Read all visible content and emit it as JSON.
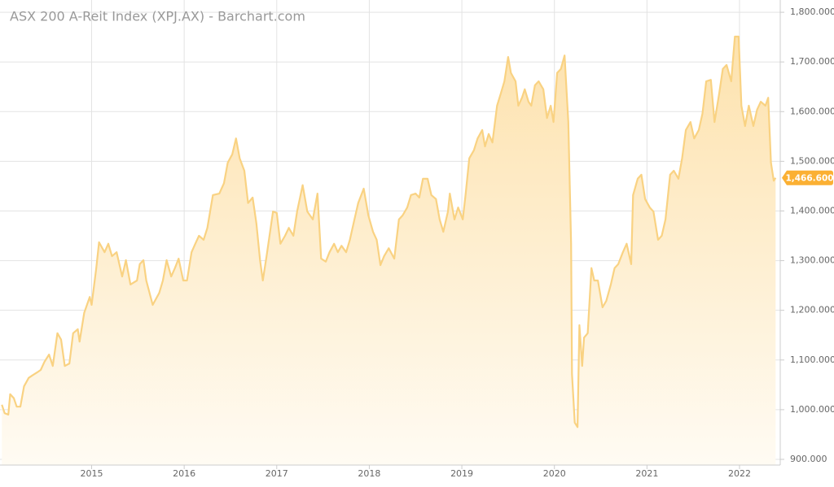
{
  "chart_data": {
    "type": "area",
    "title": "ASX 200 A-Reit Index (XPJ.AX) - Barchart.com",
    "x": [
      2014.03,
      2014.06,
      2014.1,
      2014.12,
      2014.16,
      2014.19,
      2014.23,
      2014.27,
      2014.32,
      2014.36,
      2014.41,
      2014.45,
      2014.49,
      2014.54,
      2014.58,
      2014.63,
      2014.67,
      2014.71,
      2014.76,
      2014.8,
      2014.85,
      2014.87,
      2014.92,
      2014.98,
      2015.0,
      2015.05,
      2015.08,
      2015.14,
      2015.18,
      2015.22,
      2015.27,
      2015.33,
      2015.37,
      2015.42,
      2015.49,
      2015.52,
      2015.56,
      2015.59,
      2015.66,
      2015.73,
      2015.77,
      2015.81,
      2015.86,
      2015.9,
      2015.94,
      2015.99,
      2016.03,
      2016.08,
      2016.12,
      2016.16,
      2016.21,
      2016.25,
      2016.31,
      2016.38,
      2016.43,
      2016.47,
      2016.52,
      2016.56,
      2016.6,
      2016.65,
      2016.69,
      2016.74,
      2016.78,
      2016.82,
      2016.85,
      2016.89,
      2016.96,
      2017.0,
      2017.04,
      2017.09,
      2017.13,
      2017.18,
      2017.22,
      2017.28,
      2017.33,
      2017.39,
      2017.44,
      2017.48,
      2017.53,
      2017.57,
      2017.62,
      2017.66,
      2017.7,
      2017.75,
      2017.79,
      2017.84,
      2017.88,
      2017.94,
      2017.99,
      2018.04,
      2018.08,
      2018.12,
      2018.16,
      2018.21,
      2018.27,
      2018.32,
      2018.36,
      2018.41,
      2018.45,
      2018.5,
      2018.54,
      2018.58,
      2018.63,
      2018.67,
      2018.72,
      2018.76,
      2018.8,
      2018.85,
      2018.87,
      2018.92,
      2018.96,
      2019.01,
      2019.04,
      2019.08,
      2019.13,
      2019.17,
      2019.22,
      2019.25,
      2019.29,
      2019.33,
      2019.38,
      2019.42,
      2019.46,
      2019.5,
      2019.53,
      2019.58,
      2019.61,
      2019.65,
      2019.68,
      2019.72,
      2019.75,
      2019.79,
      2019.83,
      2019.88,
      2019.92,
      2019.96,
      2019.99,
      2020.03,
      2020.07,
      2020.11,
      2020.15,
      2020.18,
      2020.19,
      2020.22,
      2020.25,
      2020.27,
      2020.3,
      2020.32,
      2020.36,
      2020.4,
      2020.43,
      2020.47,
      2020.52,
      2020.56,
      2020.61,
      2020.65,
      2020.69,
      2020.74,
      2020.78,
      2020.83,
      2020.85,
      2020.9,
      2020.94,
      2020.98,
      2021.03,
      2021.07,
      2021.12,
      2021.16,
      2021.2,
      2021.25,
      2021.29,
      2021.34,
      2021.38,
      2021.42,
      2021.47,
      2021.51,
      2021.56,
      2021.6,
      2021.64,
      2021.69,
      2021.73,
      2021.78,
      2021.82,
      2021.86,
      2021.91,
      2021.95,
      2021.99,
      2022.02,
      2022.06,
      2022.1,
      2022.15,
      2022.19,
      2022.23,
      2022.28,
      2022.31,
      2022.34,
      2022.37,
      2022.39
    ],
    "values": [
      1010,
      993,
      990,
      1031,
      1023,
      1006,
      1006,
      1047,
      1064,
      1069,
      1075,
      1080,
      1096,
      1111,
      1088,
      1154,
      1141,
      1088,
      1093,
      1154,
      1162,
      1137,
      1195,
      1227,
      1211,
      1285,
      1337,
      1317,
      1334,
      1309,
      1317,
      1268,
      1301,
      1252,
      1260,
      1293,
      1301,
      1260,
      1211,
      1235,
      1260,
      1301,
      1268,
      1285,
      1304,
      1260,
      1260,
      1317,
      1334,
      1350,
      1342,
      1366,
      1432,
      1435,
      1456,
      1497,
      1514,
      1546,
      1506,
      1481,
      1416,
      1427,
      1375,
      1301,
      1260,
      1309,
      1399,
      1396,
      1334,
      1350,
      1366,
      1350,
      1399,
      1452,
      1399,
      1383,
      1435,
      1304,
      1298,
      1317,
      1334,
      1317,
      1330,
      1317,
      1342,
      1383,
      1416,
      1445,
      1391,
      1358,
      1342,
      1291,
      1309,
      1325,
      1304,
      1383,
      1391,
      1407,
      1432,
      1435,
      1427,
      1465,
      1465,
      1432,
      1424,
      1383,
      1358,
      1399,
      1435,
      1383,
      1407,
      1383,
      1432,
      1506,
      1522,
      1546,
      1563,
      1530,
      1555,
      1538,
      1612,
      1636,
      1661,
      1710,
      1678,
      1661,
      1612,
      1628,
      1645,
      1620,
      1612,
      1653,
      1661,
      1645,
      1587,
      1612,
      1579,
      1678,
      1686,
      1713,
      1579,
      1334,
      1072,
      974,
      965,
      1170,
      1088,
      1145,
      1154,
      1285,
      1260,
      1260,
      1206,
      1219,
      1252,
      1285,
      1293,
      1317,
      1334,
      1293,
      1432,
      1465,
      1473,
      1424,
      1407,
      1399,
      1342,
      1350,
      1383,
      1473,
      1481,
      1465,
      1506,
      1563,
      1579,
      1546,
      1563,
      1596,
      1661,
      1664,
      1579,
      1636,
      1686,
      1694,
      1661,
      1751,
      1751,
      1612,
      1571,
      1612,
      1571,
      1604,
      1620,
      1612,
      1628,
      1497,
      1461,
      1466.6
    ],
    "color": "#f9d282",
    "xlim": [
      2014.01,
      2022.44
    ],
    "ylim": [
      888.5,
      1824.7
    ],
    "xticks": [
      2015,
      2016,
      2017,
      2018,
      2019,
      2020,
      2021,
      2022
    ],
    "yticks": [
      {
        "value": 900,
        "label": "900.000"
      },
      {
        "value": 1000,
        "label": "1,000.000"
      },
      {
        "value": 1100,
        "label": "1,100.000"
      },
      {
        "value": 1200,
        "label": "1,200.000"
      },
      {
        "value": 1300,
        "label": "1,300.000"
      },
      {
        "value": 1400,
        "label": "1,400.000"
      },
      {
        "value": 1500,
        "label": "1,500.000"
      },
      {
        "value": 1600,
        "label": "1,600.000"
      },
      {
        "value": 1700,
        "label": "1,700.000"
      },
      {
        "value": 1800,
        "label": "1,800.000"
      }
    ],
    "grid": true,
    "price_tag": {
      "value": 1466.6,
      "label": "1,466.600",
      "color": "#fbb033"
    }
  }
}
